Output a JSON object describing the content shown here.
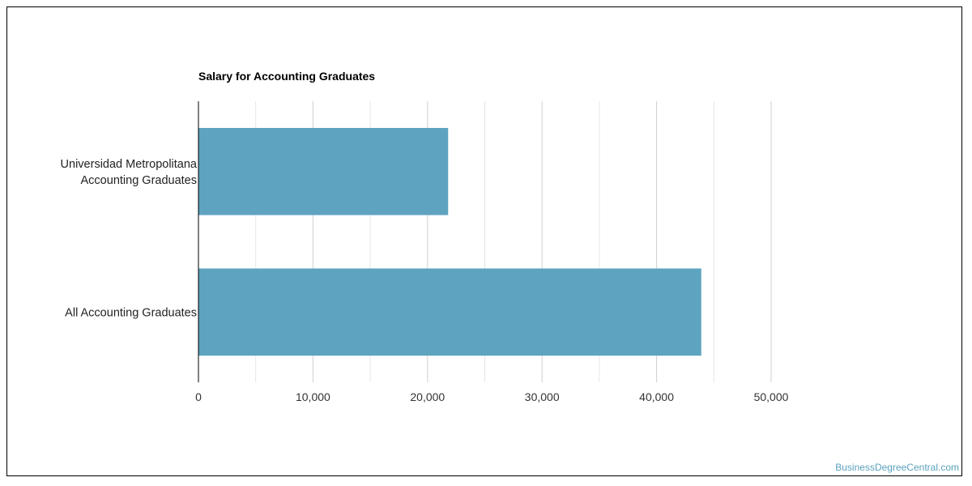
{
  "watermark": "BusinessDegreeCentral.com",
  "chart_data": {
    "type": "bar",
    "orientation": "horizontal",
    "title": "Salary for Accounting Graduates",
    "categories": [
      [
        "Universidad Metropolitana",
        "Accounting Graduates"
      ],
      [
        "All Accounting Graduates"
      ]
    ],
    "values": [
      21800,
      43900
    ],
    "xlabel": "",
    "ylabel": "",
    "xlim": [
      0,
      50000
    ],
    "x_ticks": [
      0,
      10000,
      20000,
      30000,
      40000,
      50000
    ],
    "x_tick_labels": [
      "0",
      "10,000",
      "20,000",
      "30,000",
      "40,000",
      "50,000"
    ],
    "grid": true,
    "legend": "none",
    "bar_color": "#5ea3bf",
    "gridline_color": "#d3d3d3",
    "axis_color": "#000000"
  }
}
